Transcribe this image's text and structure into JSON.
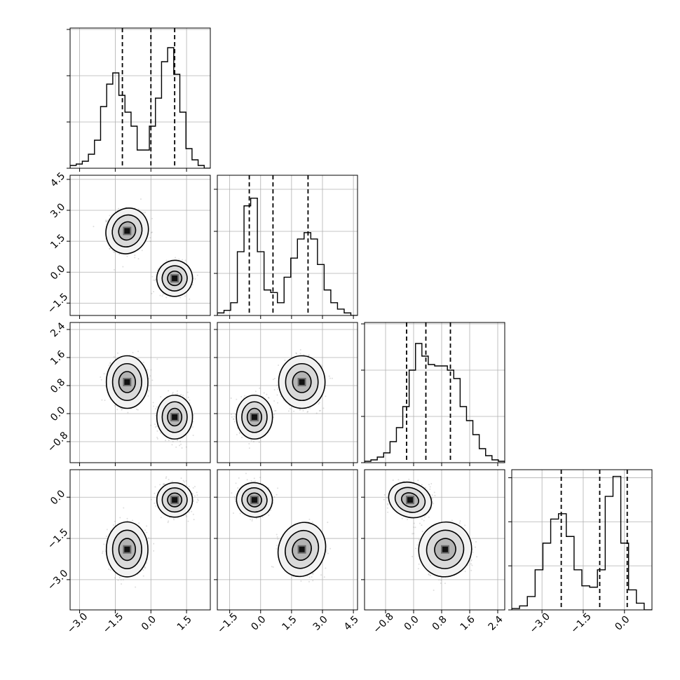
{
  "chart_data": {
    "type": "corner",
    "n_params": 4,
    "grid": true,
    "axes": [
      {
        "range": [
          -3.4,
          2.5
        ],
        "ticks": [
          -3.0,
          -1.5,
          0.0,
          1.5
        ],
        "tick_labels": [
          "−3.0",
          "−1.5",
          "0.0",
          "1.5"
        ]
      },
      {
        "range": [
          -2.1,
          4.7
        ],
        "ticks": [
          -1.5,
          0.0,
          1.5,
          3.0,
          4.5
        ],
        "tick_labels": [
          "−1.5",
          "0.0",
          "1.5",
          "3.0",
          "4.5"
        ]
      },
      {
        "range": [
          -1.4,
          2.6
        ],
        "ticks": [
          -0.8,
          0.0,
          0.8,
          1.6,
          2.4
        ],
        "tick_labels": [
          "−0.8",
          "0.0",
          "0.8",
          "1.6",
          "2.4"
        ]
      },
      {
        "range": [
          -4.1,
          1.0
        ],
        "ticks": [
          -3.0,
          -1.5,
          0.0
        ],
        "tick_labels": [
          "−3.0",
          "−1.5",
          "0.0"
        ]
      }
    ],
    "histograms": [
      {
        "bins": [
          -3.4,
          2.5
        ],
        "counts": [
          0.02,
          0.03,
          0.05,
          0.1,
          0.2,
          0.44,
          0.6,
          0.68,
          0.52,
          0.4,
          0.3,
          0.13,
          0.13,
          0.3,
          0.5,
          0.76,
          0.86,
          0.67,
          0.4,
          0.14,
          0.06,
          0.02,
          0.0
        ],
        "ymax": 1.0,
        "quantiles": [
          -1.2,
          0.0,
          1.0
        ]
      },
      {
        "bins": [
          -2.1,
          4.7
        ],
        "counts": [
          0.02,
          0.04,
          0.1,
          0.5,
          0.86,
          0.92,
          0.5,
          0.2,
          0.18,
          0.1,
          0.3,
          0.45,
          0.6,
          0.65,
          0.6,
          0.4,
          0.2,
          0.1,
          0.05,
          0.02,
          0.0
        ],
        "ymax": 1.1,
        "quantiles": [
          -0.55,
          0.6,
          2.3
        ]
      },
      {
        "bins": [
          -1.4,
          2.6
        ],
        "counts": [
          0.01,
          0.02,
          0.04,
          0.07,
          0.15,
          0.25,
          0.4,
          0.66,
          0.85,
          0.76,
          0.7,
          0.69,
          0.69,
          0.66,
          0.6,
          0.4,
          0.3,
          0.2,
          0.1,
          0.05,
          0.02,
          0.01
        ],
        "ymax": 1.0,
        "quantiles": [
          -0.2,
          0.35,
          1.05
        ]
      },
      {
        "bins": [
          -4.1,
          1.0
        ],
        "counts": [
          0.01,
          0.03,
          0.1,
          0.3,
          0.5,
          0.68,
          0.72,
          0.55,
          0.3,
          0.18,
          0.17,
          0.3,
          0.85,
          1.0,
          0.5,
          0.15,
          0.05,
          0.0
        ],
        "ymax": 1.05,
        "quantiles": [
          -2.3,
          -0.9,
          0.1
        ]
      }
    ],
    "modes": [
      {
        "weight": 0.5,
        "mean": [
          -1.0,
          2.0,
          0.9,
          -1.9
        ],
        "sd": [
          0.35,
          0.45,
          0.3,
          0.4
        ]
      },
      {
        "weight": 0.5,
        "mean": [
          1.0,
          -0.3,
          -0.1,
          -0.1
        ],
        "sd": [
          0.3,
          0.35,
          0.25,
          0.25
        ]
      }
    ],
    "contour_levels": [
      0.39,
      0.86,
      0.99
    ],
    "colors": {
      "line": "#000000",
      "grid": "#b0b0b0",
      "points": "#7a7a7a"
    }
  }
}
